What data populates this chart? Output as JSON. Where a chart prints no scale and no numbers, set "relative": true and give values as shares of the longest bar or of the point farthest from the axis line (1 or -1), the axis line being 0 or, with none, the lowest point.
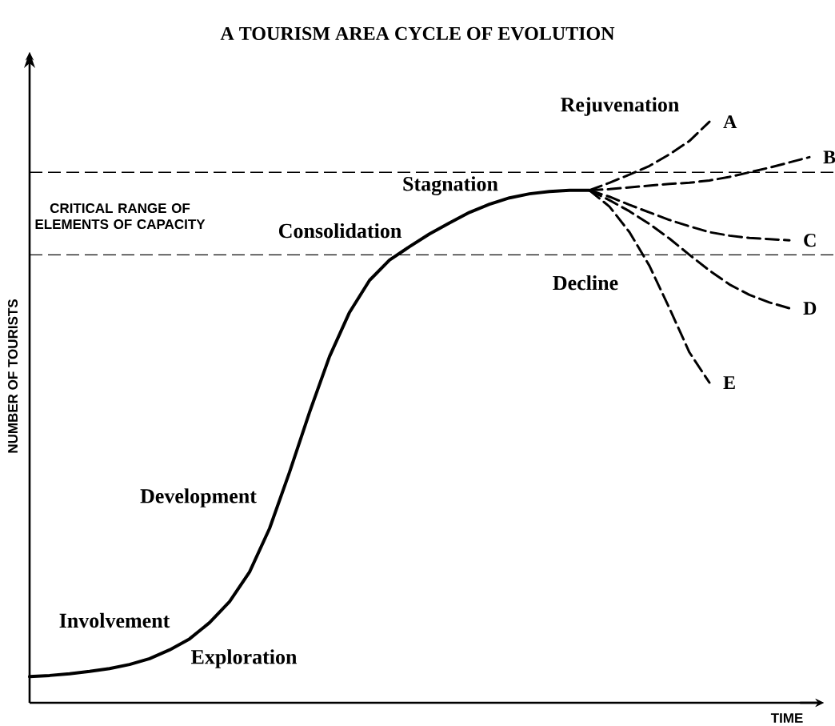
{
  "chart_data": {
    "type": "line",
    "relative": true,
    "title": "A TOURISM AREA CYCLE OF EVOLUTION",
    "xlabel": "TIME",
    "ylabel": "NUMBER OF TOURISTS",
    "categories": [
      null,
      null,
      null,
      null,
      null,
      null,
      null,
      null,
      null,
      null,
      null,
      null,
      null,
      null,
      null,
      null,
      null,
      null,
      null,
      null,
      null,
      null,
      null,
      null,
      null,
      null,
      null,
      null,
      null,
      null,
      null,
      null,
      null,
      null,
      null,
      null,
      null,
      null,
      null,
      null
    ],
    "series": [
      {
        "color": "#000000",
        "line_style": "solid",
        "values": [
          0.045,
          0.047,
          0.05,
          0.054,
          0.059,
          0.066,
          0.076,
          0.091,
          0.11,
          0.138,
          0.174,
          0.225,
          0.3,
          0.397,
          0.5,
          0.596,
          0.672,
          0.727,
          0.762,
          0.785,
          0.807,
          0.826,
          0.844,
          0.858,
          0.869,
          0.876,
          0.88,
          0.882,
          0.882,
          null,
          null,
          null,
          null,
          null,
          null,
          null,
          null,
          null,
          null,
          null
        ]
      },
      {
        "name": "A",
        "color": "#000000",
        "line_style": "dashed",
        "values": [
          null,
          null,
          null,
          null,
          null,
          null,
          null,
          null,
          null,
          null,
          null,
          null,
          null,
          null,
          null,
          null,
          null,
          null,
          null,
          null,
          null,
          null,
          null,
          null,
          null,
          null,
          null,
          null,
          0.882,
          0.895,
          0.909,
          0.924,
          0.944,
          0.967,
          1,
          null,
          null,
          null,
          null,
          null
        ]
      },
      {
        "name": "B",
        "color": "#000000",
        "line_style": "dashed",
        "values": [
          null,
          null,
          null,
          null,
          null,
          null,
          null,
          null,
          null,
          null,
          null,
          null,
          null,
          null,
          null,
          null,
          null,
          null,
          null,
          null,
          null,
          null,
          null,
          null,
          null,
          null,
          null,
          null,
          0.882,
          0.884,
          0.887,
          0.89,
          0.893,
          0.895,
          0.899,
          0.905,
          0.913,
          0.921,
          0.93,
          0.939
        ]
      },
      {
        "name": "C",
        "color": "#000000",
        "line_style": "dashed",
        "values": [
          null,
          null,
          null,
          null,
          null,
          null,
          null,
          null,
          null,
          null,
          null,
          null,
          null,
          null,
          null,
          null,
          null,
          null,
          null,
          null,
          null,
          null,
          null,
          null,
          null,
          null,
          null,
          null,
          0.882,
          0.871,
          0.857,
          0.844,
          0.831,
          0.82,
          0.81,
          0.804,
          0.8,
          0.798,
          0.796,
          null
        ]
      },
      {
        "name": "D",
        "color": "#000000",
        "line_style": "dashed",
        "values": [
          null,
          null,
          null,
          null,
          null,
          null,
          null,
          null,
          null,
          null,
          null,
          null,
          null,
          null,
          null,
          null,
          null,
          null,
          null,
          null,
          null,
          null,
          null,
          null,
          null,
          null,
          null,
          null,
          0.882,
          0.865,
          0.846,
          0.824,
          0.799,
          0.771,
          0.744,
          0.72,
          0.702,
          0.689,
          0.679,
          null
        ]
      },
      {
        "name": "E",
        "color": "#000000",
        "line_style": "dashed",
        "values": [
          null,
          null,
          null,
          null,
          null,
          null,
          null,
          null,
          null,
          null,
          null,
          null,
          null,
          null,
          null,
          null,
          null,
          null,
          null,
          null,
          null,
          null,
          null,
          null,
          null,
          null,
          null,
          null,
          0.882,
          0.854,
          0.81,
          0.752,
          0.679,
          0.603,
          0.551,
          null,
          null,
          null,
          null,
          null
        ]
      }
    ],
    "ref_lines": [
      {
        "axis": "y",
        "value": 0.913,
        "line_style": "dashed"
      },
      {
        "axis": "y",
        "value": 0.771,
        "line_style": "dashed"
      }
    ],
    "annotations": [
      "CRITICAL RANGE OF ELEMENTS OF CAPACITY",
      "Rejuvenation",
      "Stagnation",
      "Consolidation",
      "Decline",
      "Development",
      "Involvement",
      "Exploration"
    ]
  }
}
